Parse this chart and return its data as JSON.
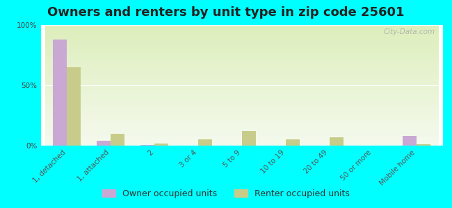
{
  "title": "Owners and renters by unit type in zip code 25601",
  "categories": [
    "1, detached",
    "1, attached",
    "2",
    "3 or 4",
    "5 to 9",
    "10 to 19",
    "20 to 49",
    "50 or more",
    "Mobile home"
  ],
  "owner_values": [
    88,
    4,
    0.5,
    0,
    0,
    0,
    0,
    0,
    8
  ],
  "renter_values": [
    65,
    10,
    2,
    5,
    12,
    5,
    7,
    0,
    1
  ],
  "owner_color": "#c9a8d4",
  "renter_color": "#c8cc8a",
  "background_color": "#00ffff",
  "ylabel": "",
  "ylim": [
    0,
    100
  ],
  "yticks": [
    0,
    50,
    100
  ],
  "ytick_labels": [
    "0%",
    "50%",
    "100%"
  ],
  "legend_owner": "Owner occupied units",
  "legend_renter": "Renter occupied units",
  "title_fontsize": 13,
  "tick_fontsize": 7.5,
  "legend_fontsize": 9,
  "watermark": "City-Data.com"
}
